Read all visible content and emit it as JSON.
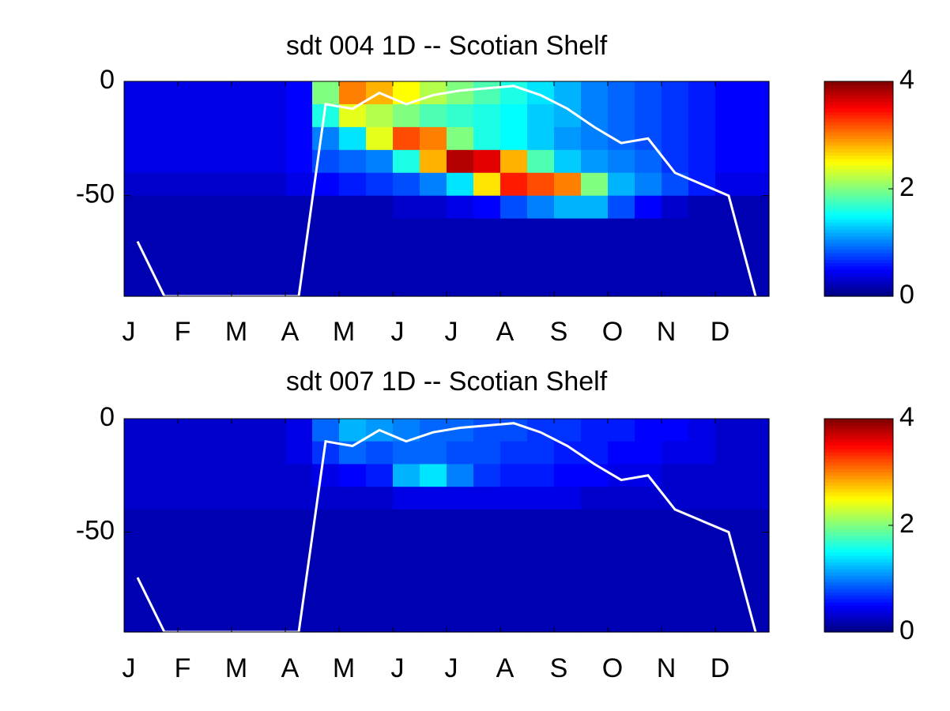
{
  "chart_data": [
    {
      "type": "heatmap",
      "title": "sdt  004 1D   -- Scotian Shelf",
      "categories": [
        "J",
        null,
        "F",
        null,
        "M",
        null,
        "A",
        null,
        "M",
        null,
        "J",
        null,
        "J",
        null,
        "A",
        null,
        "S",
        null,
        "O",
        null,
        "N",
        null,
        "D",
        null
      ],
      "y": [
        0,
        -10,
        -20,
        -30,
        -40,
        -50,
        -60,
        -70,
        -80,
        -90
      ],
      "ylim": [
        0,
        -94
      ],
      "yticks": [
        0,
        -50
      ],
      "clim": [
        0,
        4
      ],
      "cticks": [
        0,
        2,
        4
      ],
      "z": [
        [
          0.4,
          0.4,
          0.4,
          0.4,
          0.4,
          0.4,
          0.5,
          2.0,
          3.0,
          2.8,
          2.5,
          2.2,
          2.0,
          1.8,
          1.6,
          1.4,
          1.2,
          1.0,
          0.9,
          0.8,
          0.7,
          0.6,
          0.5,
          0.5
        ],
        [
          0.4,
          0.4,
          0.4,
          0.4,
          0.4,
          0.4,
          0.5,
          1.6,
          2.4,
          2.2,
          2.0,
          1.8,
          1.7,
          1.6,
          1.5,
          1.3,
          1.2,
          1.0,
          0.9,
          0.8,
          0.7,
          0.6,
          0.5,
          0.5
        ],
        [
          0.4,
          0.4,
          0.4,
          0.4,
          0.4,
          0.4,
          0.5,
          1.0,
          1.4,
          2.4,
          3.2,
          3.0,
          2.0,
          1.6,
          1.5,
          1.3,
          1.1,
          1.0,
          0.9,
          0.8,
          0.7,
          0.6,
          0.5,
          0.5
        ],
        [
          0.4,
          0.4,
          0.4,
          0.4,
          0.4,
          0.4,
          0.5,
          0.8,
          0.9,
          1.0,
          1.6,
          2.8,
          3.8,
          3.6,
          2.8,
          1.8,
          1.3,
          1.1,
          1.0,
          0.9,
          0.7,
          0.6,
          0.5,
          0.5
        ],
        [
          0.3,
          0.3,
          0.3,
          0.3,
          0.3,
          0.3,
          0.4,
          0.5,
          0.6,
          0.7,
          0.8,
          1.0,
          1.4,
          2.6,
          3.4,
          3.2,
          3.0,
          2.0,
          1.2,
          1.0,
          0.8,
          0.6,
          0.4,
          0.4
        ],
        [
          0.2,
          0.2,
          0.2,
          0.2,
          0.2,
          0.2,
          0.2,
          0.2,
          0.2,
          0.2,
          0.3,
          0.3,
          0.4,
          0.5,
          0.8,
          1.0,
          1.2,
          1.2,
          0.8,
          0.5,
          0.3,
          0.2,
          0.2,
          0.2
        ],
        [
          0.2,
          0.2,
          0.2,
          0.2,
          0.2,
          0.2,
          0.2,
          0.2,
          0.2,
          0.2,
          0.2,
          0.2,
          0.2,
          0.2,
          0.2,
          0.2,
          0.2,
          0.2,
          0.2,
          0.2,
          0.2,
          0.2,
          0.2,
          0.2
        ],
        [
          0.2,
          0.2,
          0.2,
          0.2,
          0.2,
          0.2,
          0.2,
          0.2,
          0.2,
          0.2,
          0.2,
          0.2,
          0.2,
          0.2,
          0.2,
          0.2,
          0.2,
          0.2,
          0.2,
          0.2,
          0.2,
          0.2,
          0.2,
          0.2
        ],
        [
          0.2,
          0.2,
          0.2,
          0.2,
          0.2,
          0.2,
          0.2,
          0.2,
          0.2,
          0.2,
          0.2,
          0.2,
          0.2,
          0.2,
          0.2,
          0.2,
          0.2,
          0.2,
          0.2,
          0.2,
          0.2,
          0.2,
          0.2,
          0.2
        ],
        [
          0.2,
          0.2,
          0.2,
          0.2,
          0.2,
          0.2,
          0.2,
          0.2,
          0.2,
          0.2,
          0.2,
          0.2,
          0.2,
          0.2,
          0.2,
          0.2,
          0.2,
          0.2,
          0.2,
          0.2,
          0.2,
          0.2,
          0.2,
          0.2
        ]
      ],
      "line": {
        "color": "#ffffff",
        "values": [
          -70,
          -94,
          -94,
          -94,
          -94,
          -94,
          -94,
          -10,
          -12,
          -5,
          -10,
          -6,
          -4,
          -3,
          -2,
          -6,
          -12,
          -20,
          -27,
          -25,
          -40,
          -45,
          -50,
          -94
        ]
      }
    },
    {
      "type": "heatmap",
      "title": "sdt  007 1D   -- Scotian Shelf",
      "categories": [
        "J",
        null,
        "F",
        null,
        "M",
        null,
        "A",
        null,
        "M",
        null,
        "J",
        null,
        "J",
        null,
        "A",
        null,
        "S",
        null,
        "O",
        null,
        "N",
        null,
        "D",
        null
      ],
      "y": [
        0,
        -10,
        -20,
        -30,
        -40,
        -50,
        -60,
        -70,
        -80,
        -90
      ],
      "ylim": [
        0,
        -94
      ],
      "yticks": [
        0,
        -50
      ],
      "clim": [
        0,
        4
      ],
      "cticks": [
        0,
        2,
        4
      ],
      "z": [
        [
          0.3,
          0.3,
          0.3,
          0.3,
          0.3,
          0.3,
          0.4,
          0.9,
          1.2,
          1.1,
          1.0,
          0.9,
          0.9,
          0.8,
          0.8,
          0.7,
          0.7,
          0.6,
          0.6,
          0.5,
          0.5,
          0.4,
          0.3,
          0.3
        ],
        [
          0.3,
          0.3,
          0.3,
          0.3,
          0.3,
          0.3,
          0.4,
          0.7,
          0.9,
          0.8,
          0.9,
          0.9,
          0.8,
          0.8,
          0.7,
          0.7,
          0.6,
          0.6,
          0.5,
          0.5,
          0.4,
          0.4,
          0.3,
          0.3
        ],
        [
          0.3,
          0.3,
          0.3,
          0.3,
          0.3,
          0.3,
          0.3,
          0.4,
          0.5,
          0.6,
          1.2,
          1.4,
          1.0,
          0.7,
          0.6,
          0.6,
          0.5,
          0.5,
          0.4,
          0.4,
          0.3,
          0.3,
          0.3,
          0.3
        ],
        [
          0.3,
          0.3,
          0.3,
          0.3,
          0.3,
          0.3,
          0.3,
          0.3,
          0.3,
          0.3,
          0.4,
          0.4,
          0.4,
          0.4,
          0.4,
          0.4,
          0.4,
          0.3,
          0.3,
          0.3,
          0.3,
          0.3,
          0.3,
          0.3
        ],
        [
          0.2,
          0.2,
          0.2,
          0.2,
          0.2,
          0.2,
          0.2,
          0.2,
          0.2,
          0.2,
          0.2,
          0.2,
          0.2,
          0.2,
          0.2,
          0.2,
          0.2,
          0.2,
          0.2,
          0.2,
          0.2,
          0.2,
          0.2,
          0.2
        ],
        [
          0.2,
          0.2,
          0.2,
          0.2,
          0.2,
          0.2,
          0.2,
          0.2,
          0.2,
          0.2,
          0.2,
          0.2,
          0.2,
          0.2,
          0.2,
          0.2,
          0.2,
          0.2,
          0.2,
          0.2,
          0.2,
          0.2,
          0.2,
          0.2
        ],
        [
          0.2,
          0.2,
          0.2,
          0.2,
          0.2,
          0.2,
          0.2,
          0.2,
          0.2,
          0.2,
          0.2,
          0.2,
          0.2,
          0.2,
          0.2,
          0.2,
          0.2,
          0.2,
          0.2,
          0.2,
          0.2,
          0.2,
          0.2,
          0.2
        ],
        [
          0.2,
          0.2,
          0.2,
          0.2,
          0.2,
          0.2,
          0.2,
          0.2,
          0.2,
          0.2,
          0.2,
          0.2,
          0.2,
          0.2,
          0.2,
          0.2,
          0.2,
          0.2,
          0.2,
          0.2,
          0.2,
          0.2,
          0.2,
          0.2
        ],
        [
          0.2,
          0.2,
          0.2,
          0.2,
          0.2,
          0.2,
          0.2,
          0.2,
          0.2,
          0.2,
          0.2,
          0.2,
          0.2,
          0.2,
          0.2,
          0.2,
          0.2,
          0.2,
          0.2,
          0.2,
          0.2,
          0.2,
          0.2,
          0.2
        ],
        [
          0.2,
          0.2,
          0.2,
          0.2,
          0.2,
          0.2,
          0.2,
          0.2,
          0.2,
          0.2,
          0.2,
          0.2,
          0.2,
          0.2,
          0.2,
          0.2,
          0.2,
          0.2,
          0.2,
          0.2,
          0.2,
          0.2,
          0.2,
          0.2
        ]
      ],
      "line": {
        "color": "#ffffff",
        "values": [
          -70,
          -94,
          -94,
          -94,
          -94,
          -94,
          -94,
          -10,
          -12,
          -5,
          -10,
          -6,
          -4,
          -3,
          -2,
          -6,
          -12,
          -20,
          -27,
          -25,
          -40,
          -45,
          -50,
          -94
        ]
      }
    }
  ]
}
